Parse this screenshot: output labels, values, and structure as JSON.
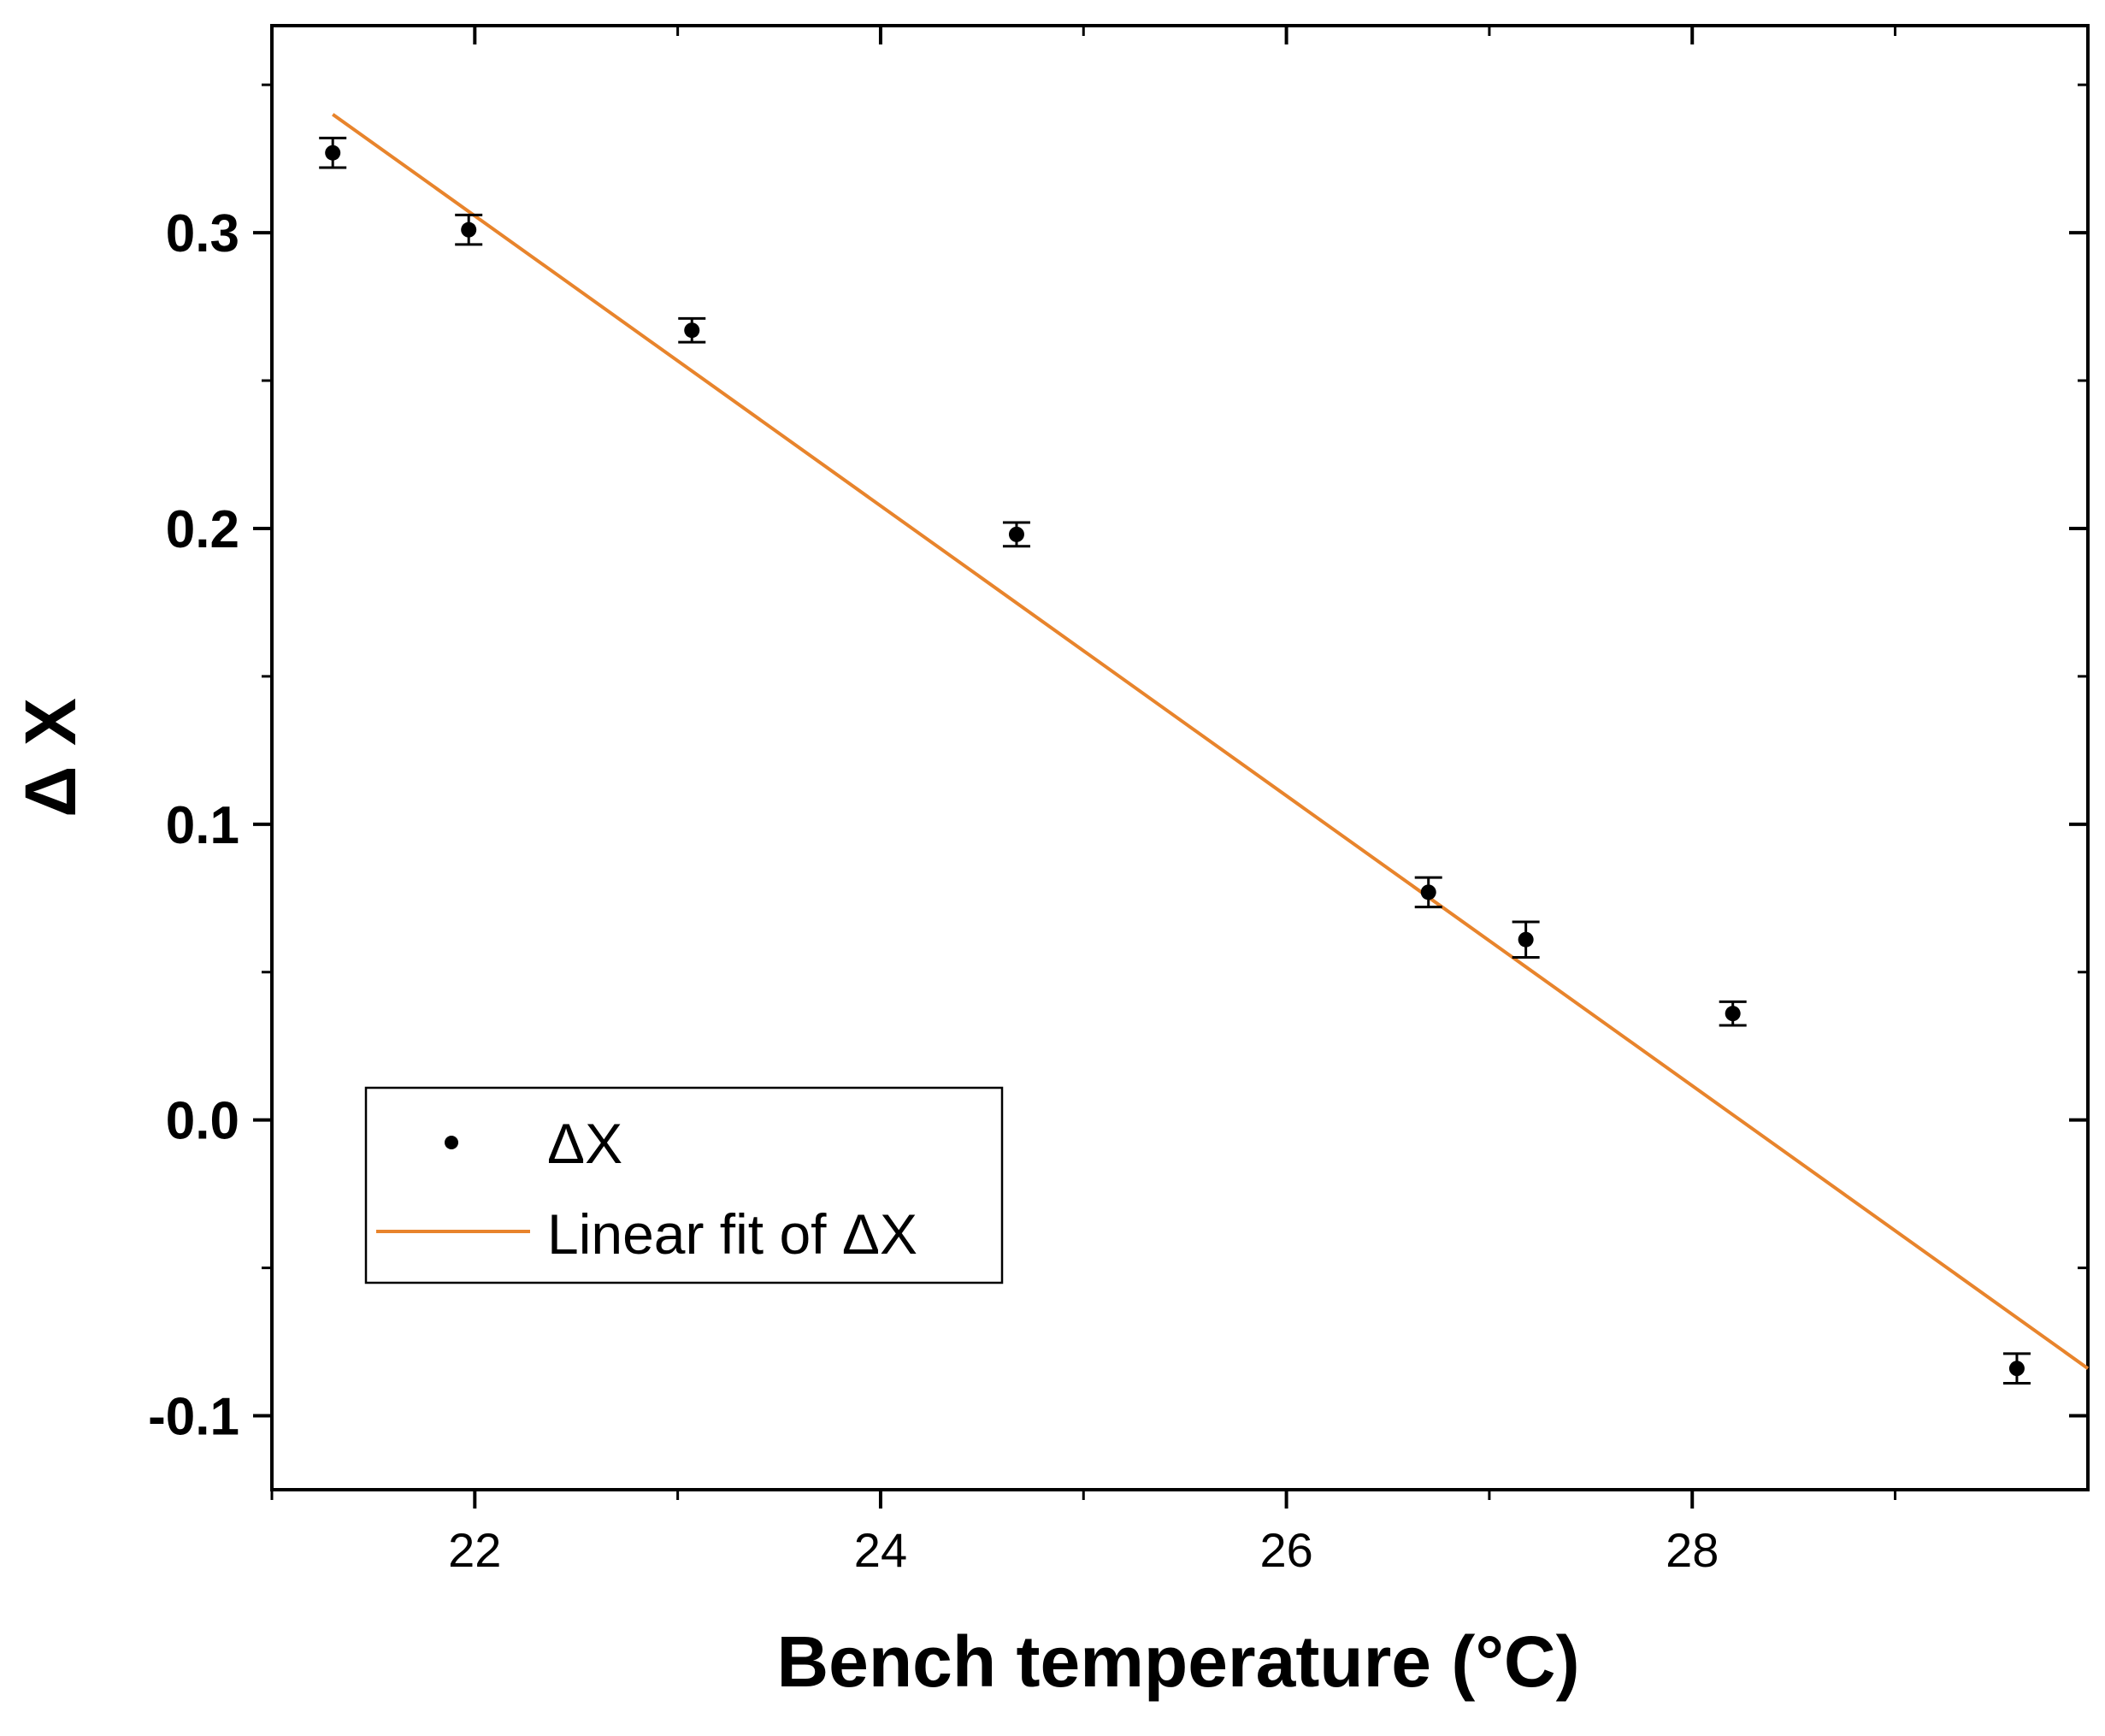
{
  "chart_data": {
    "type": "scatter",
    "xlabel": "Bench temperature (°C)",
    "ylabel": "Δ X",
    "xlim": [
      21.0,
      29.95
    ],
    "ylim": [
      -0.125,
      0.37
    ],
    "x_ticks": [
      22,
      24,
      26,
      28
    ],
    "x_tick_labels": [
      "22",
      "24",
      "26",
      "28"
    ],
    "x_minor_ticks": [
      21,
      23,
      25,
      27,
      29
    ],
    "y_ticks": [
      -0.1,
      0.0,
      0.1,
      0.2,
      0.3
    ],
    "y_tick_labels": [
      "-0.1",
      "0.0",
      "0.1",
      "0.2",
      "0.3"
    ],
    "y_minor_ticks": [
      -0.05,
      0.05,
      0.15,
      0.25,
      0.35
    ],
    "grid": false,
    "legend_position": "bottom-left",
    "series": [
      {
        "name": "ΔX",
        "kind": "points_with_error_bars",
        "color": "#000000",
        "x": [
          21.3,
          21.97,
          23.07,
          24.67,
          26.7,
          27.18,
          28.2,
          29.6
        ],
        "y": [
          0.327,
          0.301,
          0.267,
          0.198,
          0.077,
          0.061,
          0.036,
          -0.084
        ],
        "yerr": [
          0.005,
          0.005,
          0.004,
          0.004,
          0.005,
          0.006,
          0.004,
          0.005
        ]
      },
      {
        "name": "Linear fit of ΔX",
        "kind": "line",
        "color": "#E8842C",
        "x": [
          21.3,
          29.95
        ],
        "y": [
          0.34,
          -0.084
        ]
      }
    ]
  }
}
